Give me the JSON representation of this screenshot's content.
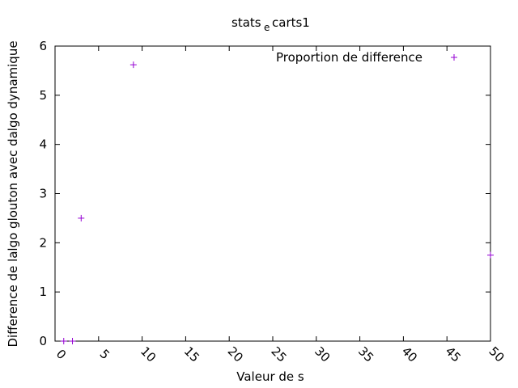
{
  "chart_data": {
    "type": "scatter",
    "title": "stats_ecarts1",
    "title_parts": {
      "main": "stats",
      "subscript": "e",
      "rest": "carts1"
    },
    "xlabel": "Valeur de s",
    "ylabel": "Difference de lalgo glouton avec dalgo dynamique",
    "xlim": [
      0,
      50
    ],
    "ylim": [
      0,
      6
    ],
    "x_ticks": [
      "0",
      "5",
      "10",
      "15",
      "20",
      "25",
      "30",
      "35",
      "40",
      "45",
      "50"
    ],
    "y_ticks": [
      "0",
      "1",
      "2",
      "3",
      "4",
      "5",
      "6"
    ],
    "grid": false,
    "legend_position": "top-right",
    "marker": "plus",
    "color": "#9400d3",
    "series": [
      {
        "name": "Proportion de difference",
        "x": [
          1,
          2,
          3,
          9,
          50
        ],
        "y": [
          0,
          0,
          2.5,
          5.62,
          1.75
        ]
      }
    ]
  }
}
